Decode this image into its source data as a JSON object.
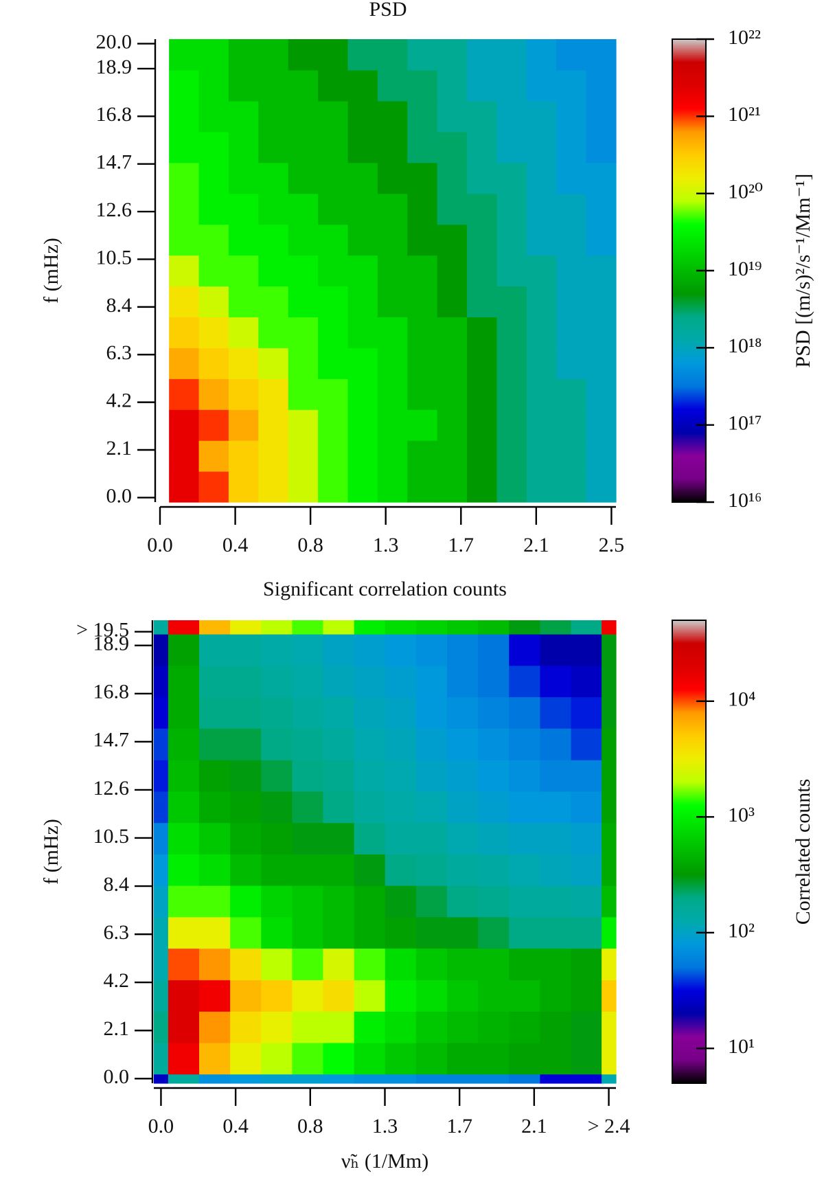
{
  "chart_data": [
    {
      "type": "heatmap",
      "title": "PSD",
      "ylabel": "f (mHz)",
      "xedges": [
        0.05,
        0.215,
        0.38,
        0.545,
        0.71,
        0.875,
        1.04,
        1.205,
        1.37,
        1.535,
        1.7,
        1.865,
        2.03,
        2.195,
        2.36,
        2.525
      ],
      "yedges": [
        -0.2,
        1.16,
        2.52,
        3.88,
        5.24,
        6.6,
        7.96,
        9.32,
        10.68,
        12.04,
        13.4,
        14.76,
        16.12,
        17.48,
        18.84,
        20.2
      ],
      "z": [
        [
          2e+21,
          1e+21,
          3e+20,
          2e+20,
          1e+20,
          5e+19,
          3e+19,
          2e+19,
          1e+19,
          1e+19,
          5e+18,
          3e+18,
          2e+18,
          2e+18,
          1e+18
        ],
        [
          2e+21,
          5e+20,
          3e+20,
          2e+20,
          1e+20,
          5e+19,
          3e+19,
          2e+19,
          1e+19,
          1e+19,
          5e+18,
          3e+18,
          2e+18,
          2e+18,
          1e+18
        ],
        [
          2e+21,
          1e+21,
          5e+20,
          2e+20,
          1e+20,
          5e+19,
          3e+19,
          2e+19,
          2e+19,
          1e+19,
          5e+18,
          3e+18,
          2e+18,
          2e+18,
          1e+18
        ],
        [
          1e+21,
          5e+20,
          3e+20,
          2e+20,
          5e+19,
          5e+19,
          3e+19,
          2e+19,
          1e+19,
          1e+19,
          5e+18,
          3e+18,
          2e+18,
          2e+18,
          1e+18
        ],
        [
          5e+20,
          3e+20,
          2e+20,
          1e+20,
          5e+19,
          3e+19,
          3e+19,
          2e+19,
          1e+19,
          1e+19,
          5e+18,
          3e+18,
          2e+18,
          1e+18,
          1e+18
        ],
        [
          3e+20,
          2e+20,
          1e+20,
          5e+19,
          5e+19,
          3e+19,
          2e+19,
          2e+19,
          1e+19,
          1e+19,
          5e+18,
          3e+18,
          2e+18,
          1e+18,
          1e+18
        ],
        [
          2e+20,
          1e+20,
          5e+19,
          5e+19,
          3e+19,
          3e+19,
          2e+19,
          1e+19,
          1e+19,
          5e+18,
          3e+18,
          3e+18,
          2e+18,
          1e+18,
          1e+18
        ],
        [
          1e+20,
          5e+19,
          5e+19,
          3e+19,
          3e+19,
          2e+19,
          2e+19,
          1e+19,
          1e+19,
          5e+18,
          3e+18,
          2e+18,
          2e+18,
          1e+18,
          1e+18
        ],
        [
          5e+19,
          5e+19,
          3e+19,
          3e+19,
          2e+19,
          2e+19,
          1e+19,
          1e+19,
          5e+18,
          5e+18,
          3e+18,
          2e+18,
          1e+18,
          1e+18,
          7e+17
        ],
        [
          5e+19,
          3e+19,
          3e+19,
          2e+19,
          2e+19,
          1e+19,
          1e+19,
          1e+19,
          5e+18,
          3e+18,
          3e+18,
          2e+18,
          1e+18,
          1e+18,
          7e+17
        ],
        [
          5e+19,
          3e+19,
          2e+19,
          2e+19,
          1e+19,
          1e+19,
          1e+19,
          5e+18,
          5e+18,
          3e+18,
          2e+18,
          2e+18,
          1e+18,
          7e+17,
          7e+17
        ],
        [
          3e+19,
          3e+19,
          2e+19,
          1e+19,
          1e+19,
          1e+19,
          5e+18,
          5e+18,
          3e+18,
          3e+18,
          2e+18,
          1e+18,
          1e+18,
          7e+17,
          5e+17
        ],
        [
          3e+19,
          2e+19,
          2e+19,
          1e+19,
          1e+19,
          1e+19,
          5e+18,
          5e+18,
          3e+18,
          2e+18,
          2e+18,
          1e+18,
          1e+18,
          7e+17,
          5e+17
        ],
        [
          3e+19,
          2e+19,
          1e+19,
          1e+19,
          1e+19,
          5e+18,
          5e+18,
          3e+18,
          3e+18,
          2e+18,
          1e+18,
          1e+18,
          7e+17,
          7e+17,
          5e+17
        ],
        [
          2e+19,
          2e+19,
          1e+19,
          1e+19,
          5e+18,
          5e+18,
          3e+18,
          3e+18,
          2e+18,
          2e+18,
          1e+18,
          1e+18,
          7e+17,
          5e+17,
          5e+17
        ]
      ],
      "xlim": [
        0,
        2.525
      ],
      "ylim": [
        -0.2,
        20.2
      ],
      "xticks": [
        {
          "value": 0,
          "label": "0.0"
        },
        {
          "value": 0.4167,
          "label": "0.4"
        },
        {
          "value": 0.8333,
          "label": "0.8"
        },
        {
          "value": 1.25,
          "label": "1.3"
        },
        {
          "value": 1.6667,
          "label": "1.7"
        },
        {
          "value": 2.0833,
          "label": "2.1"
        },
        2.5
      ],
      "yticks": [
        {
          "value": 0,
          "label": "0.0"
        },
        2.1,
        4.2,
        6.3,
        8.4,
        10.5,
        12.6,
        14.7,
        16.8,
        18.9,
        {
          "value": 20,
          "label": "20.0"
        }
      ],
      "colormap": "nipy_spectral",
      "clog": true,
      "clim": [
        1e+16,
        1e+22
      ],
      "cticks": [
        {
          "value": 1e+16,
          "label": "10¹⁶"
        },
        {
          "value": 1e+17,
          "label": "10¹⁷"
        },
        {
          "value": 1e+18,
          "label": "10¹⁸"
        },
        {
          "value": 1e+19,
          "label": "10¹⁹"
        },
        {
          "value": 1e+20,
          "label": "10²⁰"
        },
        {
          "value": 1e+21,
          "label": "10²¹"
        },
        {
          "value": 1e+22,
          "label": "10²²"
        }
      ],
      "clabel": "PSD [(m/s)²/s⁻¹/Mm⁻¹]"
    },
    {
      "type": "heatmap",
      "title": "Significant correlation counts",
      "ylabel": "f (mHz)",
      "xlabel": "ν̃ₕ (1/Mm)",
      "xedges": [
        -0.04,
        0.04,
        0.213,
        0.386,
        0.559,
        0.732,
        0.905,
        1.078,
        1.251,
        1.424,
        1.597,
        1.77,
        1.943,
        2.116,
        2.289,
        2.46,
        2.54
      ],
      "yedges": [
        -0.2,
        0.2,
        1.57,
        2.94,
        4.31,
        5.69,
        7.06,
        8.43,
        9.8,
        11.17,
        12.54,
        13.91,
        15.29,
        16.66,
        18.03,
        19.4,
        20.0
      ],
      "z": [
        [
          25,
          150,
          70,
          80,
          90,
          90,
          80,
          70,
          70,
          60,
          60,
          60,
          50,
          30,
          30,
          120
        ],
        [
          150,
          15000,
          6000,
          3000,
          2000,
          1500,
          1200,
          800,
          600,
          500,
          400,
          400,
          350,
          350,
          300,
          3000
        ],
        [
          200,
          20000,
          8000,
          4000,
          3000,
          2000,
          2000,
          1000,
          800,
          600,
          500,
          450,
          400,
          350,
          300,
          3000
        ],
        [
          150,
          20000,
          15000,
          6000,
          5000,
          3000,
          4000,
          2000,
          1000,
          800,
          600,
          500,
          500,
          400,
          350,
          5000
        ],
        [
          120,
          10000,
          8000,
          4000,
          2000,
          1500,
          2500,
          1500,
          800,
          600,
          500,
          500,
          400,
          400,
          350,
          3000
        ],
        [
          120,
          3000,
          3000,
          1500,
          800,
          600,
          500,
          400,
          350,
          300,
          300,
          250,
          200,
          200,
          200,
          1000
        ],
        [
          100,
          1500,
          1500,
          1000,
          700,
          600,
          500,
          400,
          300,
          250,
          200,
          180,
          150,
          150,
          140,
          500
        ],
        [
          80,
          1000,
          800,
          500,
          400,
          400,
          400,
          300,
          200,
          180,
          150,
          140,
          120,
          110,
          100,
          400
        ],
        [
          60,
          800,
          600,
          400,
          350,
          300,
          300,
          200,
          150,
          150,
          120,
          110,
          100,
          100,
          90,
          400
        ],
        [
          40,
          600,
          400,
          350,
          300,
          250,
          200,
          150,
          130,
          120,
          100,
          90,
          80,
          80,
          70,
          350
        ],
        [
          35,
          500,
          350,
          300,
          250,
          200,
          180,
          130,
          120,
          100,
          90,
          80,
          70,
          60,
          60,
          350
        ],
        [
          40,
          450,
          250,
          250,
          200,
          180,
          150,
          120,
          110,
          90,
          80,
          70,
          60,
          50,
          40,
          350
        ],
        [
          30,
          400,
          200,
          200,
          180,
          150,
          130,
          110,
          100,
          80,
          70,
          60,
          50,
          40,
          35,
          300
        ],
        [
          25,
          400,
          180,
          180,
          150,
          130,
          110,
          100,
          90,
          80,
          60,
          50,
          40,
          30,
          25,
          300
        ],
        [
          20,
          350,
          150,
          150,
          130,
          120,
          100,
          90,
          80,
          70,
          60,
          50,
          30,
          20,
          20,
          300
        ],
        [
          150,
          15000,
          6000,
          3000,
          2000,
          1500,
          2000,
          1000,
          800,
          700,
          600,
          500,
          300,
          250,
          200,
          15000
        ]
      ],
      "xlim": [
        -0.04,
        2.54
      ],
      "ylim": [
        -0.2,
        20.0
      ],
      "xticks": [
        {
          "value": 0,
          "label": "0.0"
        },
        {
          "value": 0.4167,
          "label": "0.4"
        },
        {
          "value": 0.8333,
          "label": "0.8"
        },
        {
          "value": 1.25,
          "label": "1.3"
        },
        {
          "value": 1.6667,
          "label": "1.7"
        },
        {
          "value": 2.0833,
          "label": "2.1"
        },
        {
          "value": 2.5,
          "label": "> 2.4"
        }
      ],
      "yticks": [
        {
          "value": 0,
          "label": "0.0"
        },
        2.1,
        4.2,
        6.3,
        8.4,
        10.5,
        12.6,
        14.7,
        16.8,
        18.9,
        {
          "value": 19.5,
          "label": "> 19.5"
        }
      ],
      "colormap": "nipy_spectral",
      "clog": true,
      "clim": [
        5,
        50000
      ],
      "cticks": [
        {
          "value": 10,
          "label": "10¹"
        },
        {
          "value": 100,
          "label": "10²"
        },
        {
          "value": 1000,
          "label": "10³"
        },
        {
          "value": 10000,
          "label": "10⁴"
        }
      ],
      "clabel": "Correlated counts"
    }
  ]
}
